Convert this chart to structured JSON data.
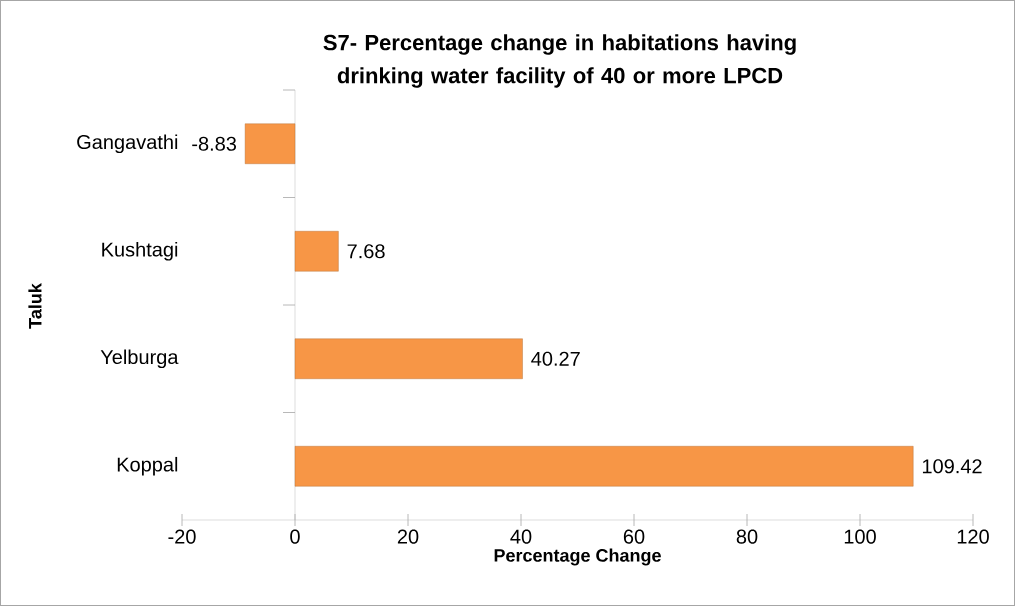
{
  "chart_data": {
    "type": "bar",
    "orientation": "horizontal",
    "title": "S7- Percentage  change in habitations having drinking water facility of 40 or more LPCD",
    "xlabel": "Percentage Change",
    "ylabel": "Taluk",
    "categories": [
      "Gangavathi",
      "Kushtagi",
      "Yelburga",
      "Koppal"
    ],
    "values": [
      -8.83,
      7.68,
      40.27,
      109.42
    ],
    "color": "#f79646",
    "xlim": [
      -20,
      120
    ],
    "xticks": [
      -20,
      0,
      20,
      40,
      60,
      80,
      100,
      120
    ],
    "data_labels": true
  }
}
